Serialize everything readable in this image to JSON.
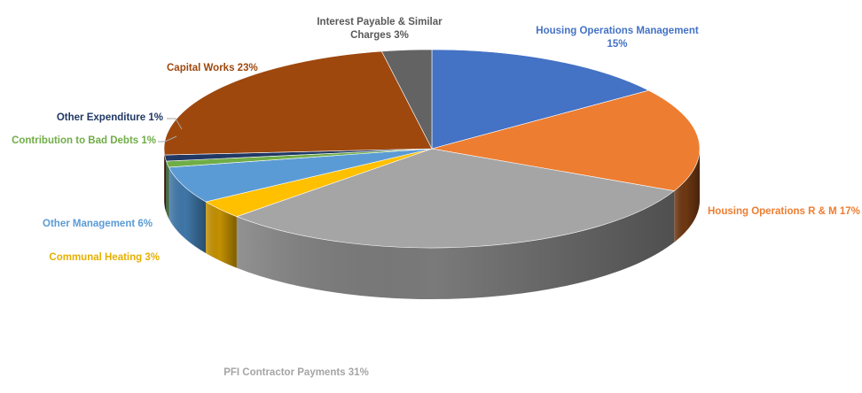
{
  "chart_data": {
    "type": "pie",
    "style": "3d",
    "title": "",
    "legend": "none",
    "slices": [
      {
        "label": "Housing Operations Management",
        "value": 15,
        "value_text": "15%",
        "color": "#4472C4",
        "side_color": "#2F5597"
      },
      {
        "label": "Housing Operations R & M",
        "value": 17,
        "value_text": "17%",
        "color": "#ED7D31",
        "side_color": "#6E3712"
      },
      {
        "label": "PFI Contractor Payments",
        "value": 31,
        "value_text": "31%",
        "color": "#A5A5A5",
        "side_color": "#7A7A7A"
      },
      {
        "label": "Communal Heating",
        "value": 3,
        "value_text": "3%",
        "color": "#FFC000",
        "side_color": "#C39000"
      },
      {
        "label": "Other Management",
        "value": 6,
        "value_text": "6%",
        "color": "#5B9BD5",
        "side_color": "#3F77A8"
      },
      {
        "label": "Contribution to Bad Debts",
        "value": 1,
        "value_text": "1%",
        "color": "#70AD47",
        "side_color": "#4E7C30"
      },
      {
        "label": "Other Expenditure",
        "value": 1,
        "value_text": "1%",
        "color": "#203864",
        "side_color": "#142443"
      },
      {
        "label": "Capital Works",
        "value": 23,
        "value_text": "23%",
        "color": "#9E480E",
        "side_color": "#6B2F08"
      },
      {
        "label": "Interest Payable & Similar Charges",
        "value": 3,
        "value_text": "3%",
        "color": "#636363",
        "side_color": "#454545"
      }
    ]
  },
  "labels": {
    "hom": {
      "line1": "Housing Operations Management",
      "line2": "15%",
      "color": "#4472C4"
    },
    "horm": {
      "text": "Housing Operations R & M 17%",
      "color": "#ED7D31"
    },
    "pfi": {
      "text": "PFI Contractor Payments 31%",
      "color": "#A5A5A5"
    },
    "ch": {
      "text": "Communal Heating 3%",
      "color": "#E6B000"
    },
    "om": {
      "text": "Other Management 6%",
      "color": "#5B9BD5"
    },
    "cbd": {
      "text": "Contribution to Bad Debts 1%",
      "color": "#70AD47"
    },
    "oe": {
      "text": "Other Expenditure 1%",
      "color": "#203864"
    },
    "cw": {
      "text": "Capital Works 23%",
      "color": "#9E480E"
    },
    "ip": {
      "line1": "Interest Payable & Similar",
      "line2": "Charges 3%",
      "color": "#595959"
    }
  }
}
